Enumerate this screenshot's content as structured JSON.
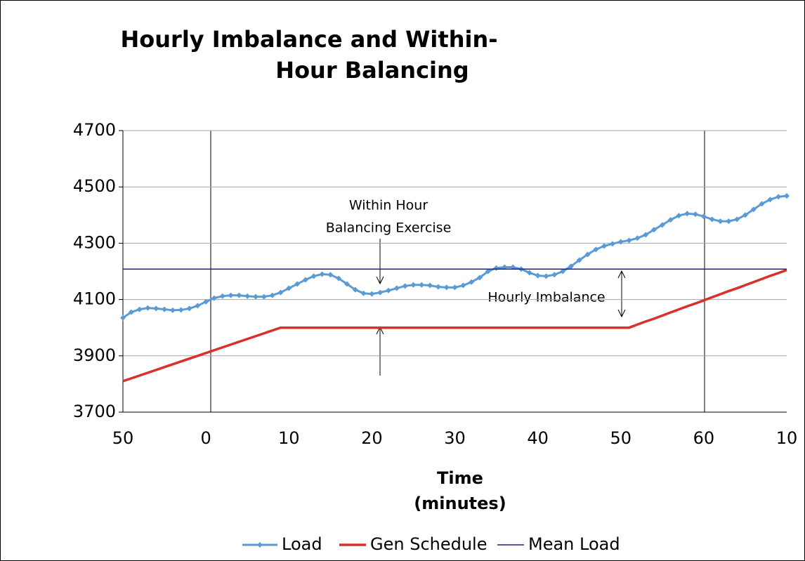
{
  "chart_data": {
    "type": "line",
    "title": [
      "Hourly Imbalance and Within-",
      "Hour Balancing"
    ],
    "x_label": [
      "Time",
      "(minutes)"
    ],
    "annotations": [
      [
        "Within Hour",
        "Balancing Exercise"
      ],
      [
        "Hourly Imbalance"
      ]
    ],
    "categories": [
      "50",
      null,
      null,
      null,
      null,
      null,
      null,
      null,
      null,
      null,
      "0",
      null,
      null,
      null,
      null,
      null,
      null,
      null,
      null,
      null,
      "10",
      null,
      null,
      null,
      null,
      null,
      null,
      null,
      null,
      null,
      "20",
      null,
      null,
      null,
      null,
      null,
      null,
      null,
      null,
      null,
      "30",
      null,
      null,
      null,
      null,
      null,
      null,
      null,
      null,
      null,
      "40",
      null,
      null,
      null,
      null,
      null,
      null,
      null,
      null,
      null,
      "50",
      null,
      null,
      null,
      null,
      null,
      null,
      null,
      null,
      null,
      "60",
      null,
      null,
      null,
      null,
      null,
      null,
      null,
      null,
      null,
      "10"
    ],
    "series": [
      {
        "name": "Load",
        "color": "#5b9bd5",
        "marker": "diamond",
        "values": [
          4035,
          4055,
          4065,
          4070,
          4068,
          4065,
          4062,
          4063,
          4068,
          4078,
          4092,
          4105,
          4112,
          4115,
          4115,
          4112,
          4110,
          4110,
          4115,
          4125,
          4140,
          4155,
          4170,
          4183,
          4190,
          4188,
          4175,
          4155,
          4135,
          4122,
          4120,
          4125,
          4132,
          4140,
          4148,
          4152,
          4152,
          4150,
          4145,
          4143,
          4143,
          4150,
          4162,
          4178,
          4200,
          4212,
          4215,
          4215,
          4208,
          4195,
          4185,
          4183,
          4188,
          4200,
          4218,
          4240,
          4260,
          4278,
          4290,
          4298,
          4305,
          4310,
          4318,
          4330,
          4348,
          4365,
          4383,
          4398,
          4405,
          4403,
          4395,
          4385,
          4378,
          4378,
          4385,
          4400,
          4420,
          4440,
          4455,
          4465,
          4468
        ]
      },
      {
        "name": "Gen Schedule",
        "color": "#d9302c",
        "values": [
          3810,
          3820,
          3830,
          3840,
          3850,
          3860,
          3870,
          3880,
          3890,
          3900,
          3910,
          3920,
          3930,
          3940,
          3950,
          3960,
          3970,
          3980,
          3990,
          4000,
          4000,
          4000,
          4000,
          4000,
          4000,
          4000,
          4000,
          4000,
          4000,
          4000,
          4000,
          4000,
          4000,
          4000,
          4000,
          4000,
          4000,
          4000,
          4000,
          4000,
          4000,
          4000,
          4000,
          4000,
          4000,
          4000,
          4000,
          4000,
          4000,
          4000,
          4000,
          4000,
          4000,
          4000,
          4000,
          4000,
          4000,
          4000,
          4000,
          4000,
          4000,
          4000,
          4011,
          4022,
          4032,
          4043,
          4054,
          4065,
          4076,
          4086,
          4097,
          4108,
          4119,
          4130,
          4140,
          4151,
          4162,
          4173,
          4184,
          4194,
          4205
        ]
      },
      {
        "name": "Mean Load",
        "color": "#1f1f8f",
        "values": [
          4208,
          4208,
          4208,
          4208,
          4208,
          4208,
          4208,
          4208,
          4208,
          4208,
          4208,
          4208,
          4208,
          4208,
          4208,
          4208,
          4208,
          4208,
          4208,
          4208,
          4208,
          4208,
          4208,
          4208,
          4208,
          4208,
          4208,
          4208,
          4208,
          4208,
          4208,
          4208,
          4208,
          4208,
          4208,
          4208,
          4208,
          4208,
          4208,
          4208,
          4208,
          4208,
          4208,
          4208,
          4208,
          4208,
          4208,
          4208,
          4208,
          4208,
          4208,
          4208,
          4208,
          4208,
          4208,
          4208,
          4208,
          4208,
          4208,
          4208,
          4208,
          4208,
          4208,
          4208,
          4208,
          4208,
          4208,
          4208,
          4208,
          4208,
          4208,
          4208,
          4208,
          4208,
          4208,
          4208,
          4208,
          4208,
          4208,
          4208,
          4208
        ]
      }
    ],
    "ylim": [
      3700,
      4700
    ],
    "yticks": [
      3700,
      3900,
      4100,
      4300,
      4500,
      4700
    ],
    "grid": true,
    "legend": "bottom"
  }
}
